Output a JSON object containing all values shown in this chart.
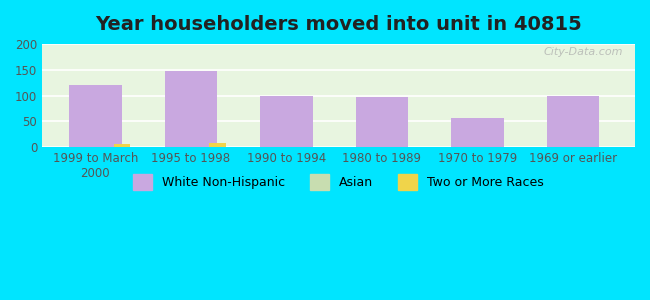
{
  "title": "Year householders moved into unit in 40815",
  "categories": [
    "1999 to March\n2000",
    "1995 to 1998",
    "1990 to 1994",
    "1980 to 1989",
    "1970 to 1979",
    "1969 or earlier"
  ],
  "series": {
    "White Non-Hispanic": [
      120,
      147,
      100,
      97,
      57,
      100
    ],
    "Asian": [
      0,
      0,
      0,
      0,
      0,
      0
    ],
    "Two or More Races": [
      7,
      8,
      0,
      0,
      0,
      0
    ]
  },
  "bar_colors": {
    "White Non-Hispanic": "#c9a8e0",
    "Asian": "#c8ddb0",
    "Two or More Races": "#f0d44a"
  },
  "bar_width": 0.25,
  "ylim": [
    0,
    200
  ],
  "yticks": [
    0,
    50,
    100,
    150,
    200
  ],
  "background_outer": "#00e5ff",
  "background_plot_top": "#e8f5e0",
  "background_plot_bottom": "#f5fff5",
  "grid_color": "#ffffff",
  "watermark": "City-Data.com",
  "title_fontsize": 14,
  "tick_fontsize": 8.5,
  "legend_fontsize": 9
}
